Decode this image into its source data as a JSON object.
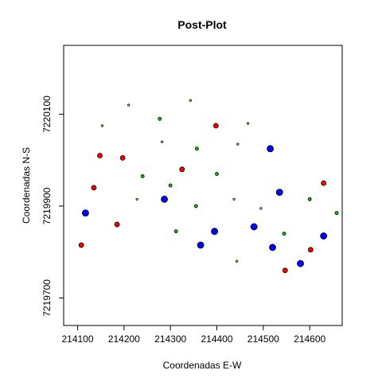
{
  "chart_data": {
    "type": "scatter",
    "title": "Post-Plot",
    "xlabel": "Coordenadas E-W",
    "ylabel": "Coordenadas N-S",
    "xlim": [
      214070,
      214670
    ],
    "ylim": [
      7219640,
      7220250
    ],
    "xticks": [
      214100,
      214200,
      214300,
      214400,
      214500,
      214600
    ],
    "yticks": [
      7219700,
      7219900,
      7220100
    ],
    "xtick_labels": [
      "214100",
      "214200",
      "214300",
      "214400",
      "214500",
      "214600"
    ],
    "ytick_labels": [
      "7219700",
      "7219900",
      "7220100"
    ],
    "grid": false,
    "series": [
      {
        "color": "#0000ff",
        "size": "large",
        "points": [
          {
            "x": 214117,
            "y": 7219885
          },
          {
            "x": 214287,
            "y": 7219915
          },
          {
            "x": 214365,
            "y": 7219815
          },
          {
            "x": 214395,
            "y": 7219845
          },
          {
            "x": 214480,
            "y": 7219855
          },
          {
            "x": 214515,
            "y": 7220025
          },
          {
            "x": 214520,
            "y": 7219810
          },
          {
            "x": 214535,
            "y": 7219930
          },
          {
            "x": 214580,
            "y": 7219775
          },
          {
            "x": 214630,
            "y": 7219835
          }
        ]
      },
      {
        "color": "#ff0000",
        "size": "medium",
        "points": [
          {
            "x": 214108,
            "y": 7219815
          },
          {
            "x": 214135,
            "y": 7219940
          },
          {
            "x": 214148,
            "y": 7220010
          },
          {
            "x": 214185,
            "y": 7219860
          },
          {
            "x": 214197,
            "y": 7220005
          },
          {
            "x": 214325,
            "y": 7219980
          },
          {
            "x": 214398,
            "y": 7220075
          },
          {
            "x": 214547,
            "y": 7219760
          },
          {
            "x": 214602,
            "y": 7219805
          },
          {
            "x": 214630,
            "y": 7219950
          }
        ]
      },
      {
        "color": "#00cd00",
        "size": "small",
        "points": [
          {
            "x": 214240,
            "y": 7219965
          },
          {
            "x": 214277,
            "y": 7220090
          },
          {
            "x": 214300,
            "y": 7219945
          },
          {
            "x": 214312,
            "y": 7219845
          },
          {
            "x": 214357,
            "y": 7220025
          },
          {
            "x": 214355,
            "y": 7219900
          },
          {
            "x": 214400,
            "y": 7219970
          },
          {
            "x": 214545,
            "y": 7219840
          },
          {
            "x": 214600,
            "y": 7219915
          },
          {
            "x": 214658,
            "y": 7219885
          }
        ]
      },
      {
        "color": "#ffff00",
        "size": "tiny",
        "points": [
          {
            "x": 214153,
            "y": 7220075
          },
          {
            "x": 214210,
            "y": 7220120
          },
          {
            "x": 214228,
            "y": 7219915
          },
          {
            "x": 214282,
            "y": 7220040
          },
          {
            "x": 214343,
            "y": 7220130
          },
          {
            "x": 214437,
            "y": 7219915
          },
          {
            "x": 214445,
            "y": 7220035
          },
          {
            "x": 214443,
            "y": 7219780
          },
          {
            "x": 214467,
            "y": 7220080
          },
          {
            "x": 214495,
            "y": 7219895
          }
        ]
      }
    ]
  }
}
